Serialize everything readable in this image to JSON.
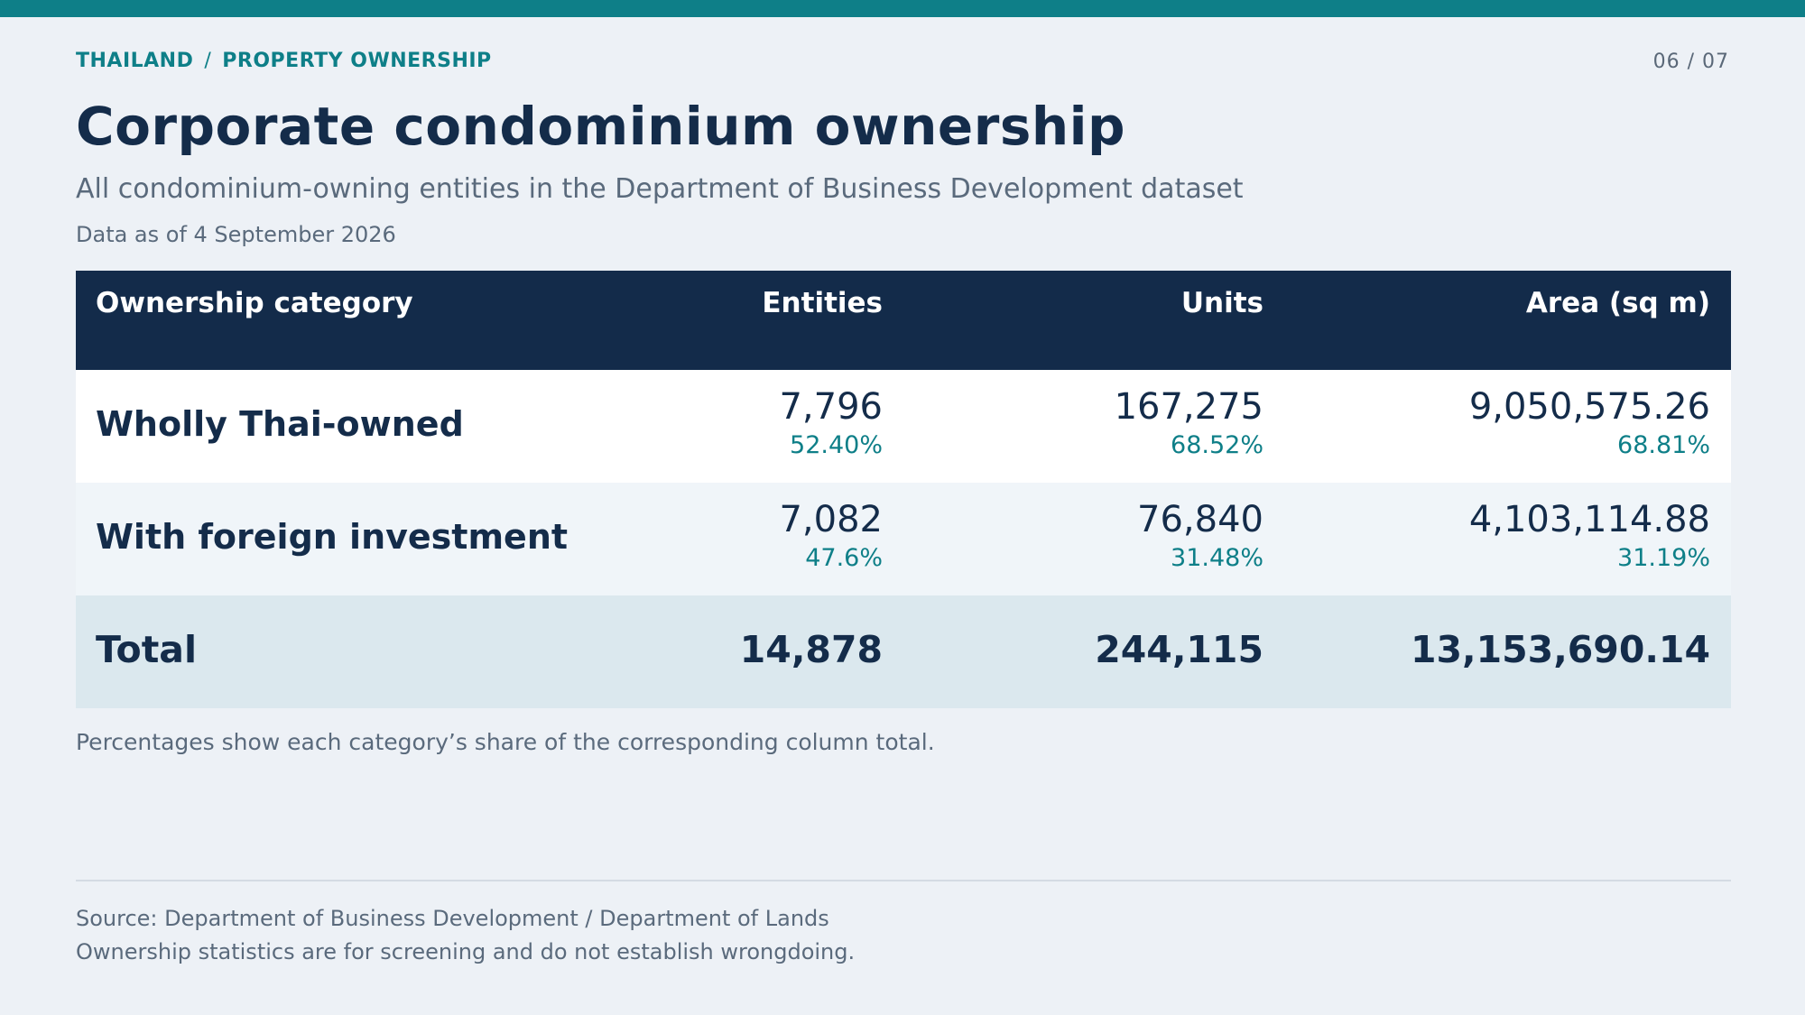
{
  "breadcrumb": {
    "country": "THAILAND",
    "separator": "/",
    "section": "PROPERTY OWNERSHIP"
  },
  "pager": "06 / 07",
  "title": "Corporate condominium ownership",
  "subtitle": "All condominium-owning entities in the Department of Business Development dataset",
  "as_of": "Data as of 4 September 2026",
  "table": {
    "headers": [
      "Ownership category",
      "Entities",
      "Units",
      "Area (sq m)"
    ],
    "rows": [
      {
        "category": "Wholly Thai-owned",
        "entities": {
          "value": "7,796",
          "pct": "52.40%"
        },
        "units": {
          "value": "167,275",
          "pct": "68.52%"
        },
        "area": {
          "value": "9,050,575.26",
          "pct": "68.81%"
        }
      },
      {
        "category": "With foreign investment",
        "entities": {
          "value": "7,082",
          "pct": "47.6%"
        },
        "units": {
          "value": "76,840",
          "pct": "31.48%"
        },
        "area": {
          "value": "4,103,114.88",
          "pct": "31.19%"
        }
      }
    ],
    "total": {
      "label": "Total",
      "entities": "14,878",
      "units": "244,115",
      "area": "13,153,690.14"
    }
  },
  "note": "Percentages show each category’s share of the corresponding column total.",
  "source": {
    "line1": "Source: Department of Business Development / Department of Lands",
    "line2": "Ownership statistics are for screening and do not establish wrongdoing."
  },
  "colors": {
    "accent": "#0e7f88",
    "header_bg": "#132b4a",
    "page_bg": "#edf1f6",
    "total_bg": "#dbe8ee"
  }
}
